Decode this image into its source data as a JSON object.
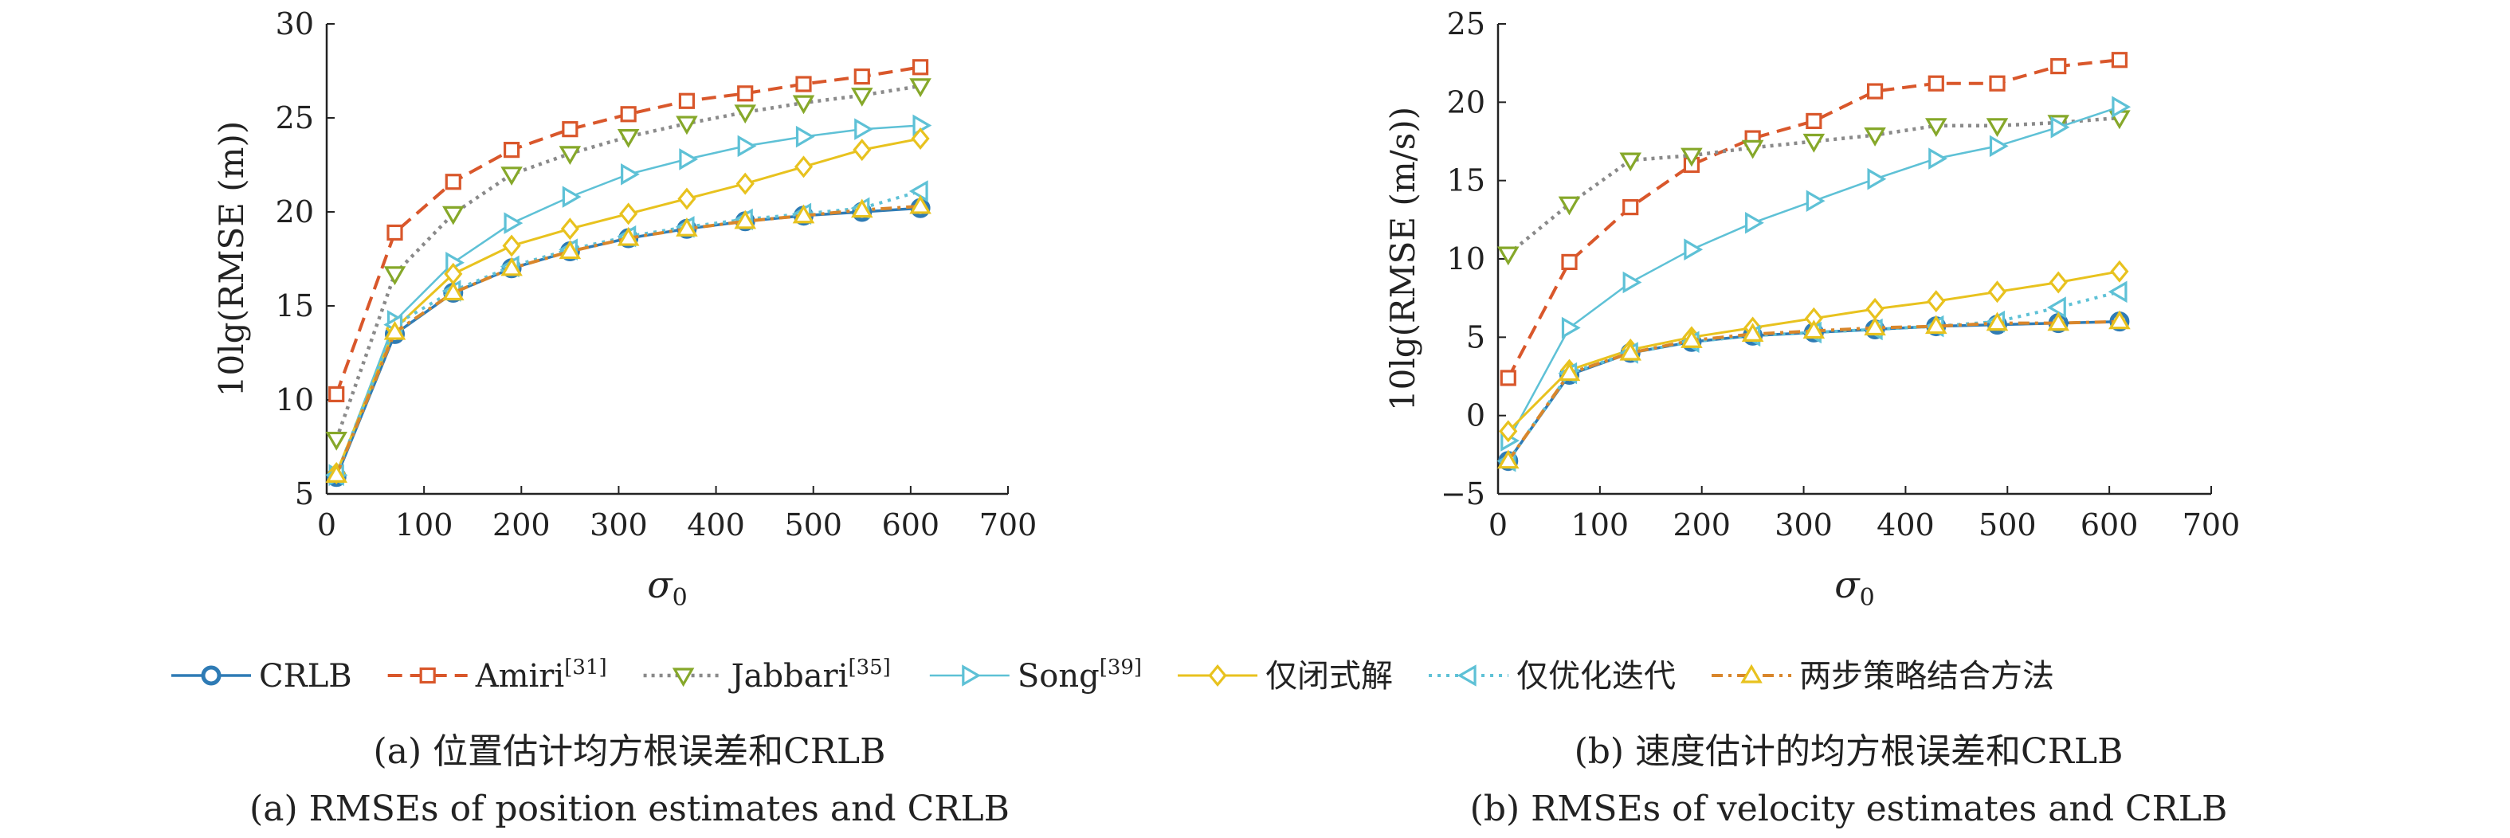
{
  "captions": {
    "a_cn": "(a) 位置估计均方根误差和CRLB",
    "a_en": "(a) RMSEs of position estimates and CRLB",
    "b_cn": "(b) 速度估计的均方根误差和CRLB",
    "b_en": "(b) RMSEs of velocity estimates and CRLB"
  },
  "legend": [
    {
      "name": "CRLB",
      "sup": ""
    },
    {
      "name": "Amiri",
      "sup": "[31]"
    },
    {
      "name": "Jabbari",
      "sup": "[35]"
    },
    {
      "name": "Song",
      "sup": "[39]"
    },
    {
      "name": "仅闭式解",
      "sup": ""
    },
    {
      "name": "仅优化迭代",
      "sup": ""
    },
    {
      "name": "两步策略结合方法",
      "sup": ""
    }
  ],
  "styles": [
    {
      "color": "#2e7bb5",
      "dash": "",
      "marker": "circle",
      "width": 3.5
    },
    {
      "color": "#d9572b",
      "dash": "18,10",
      "marker": "square",
      "width": 4
    },
    {
      "color": "#8a8a8a",
      "dash": "4,6",
      "marker": "tri-down",
      "width": 4.5,
      "mcolor": "#86a82a"
    },
    {
      "color": "#5ec1d6",
      "dash": "",
      "marker": "tri-right",
      "width": 2.5
    },
    {
      "color": "#e8c21e",
      "dash": "",
      "marker": "diamond",
      "width": 3
    },
    {
      "color": "#5ec1d6",
      "dash": "4,7",
      "marker": "tri-left",
      "width": 4
    },
    {
      "color": "#d9862b",
      "dash": "14,7,4,7",
      "marker": "tri-up",
      "width": 4,
      "mcolor": "#e8c21e"
    }
  ],
  "chart_data": [
    {
      "type": "line",
      "title": "",
      "xlabel": "σ0",
      "ylabel": "10lg(RMSE (m))",
      "xlim": [
        0,
        700
      ],
      "ylim": [
        5,
        30
      ],
      "xticks": [
        0,
        100,
        200,
        300,
        400,
        500,
        600,
        700
      ],
      "yticks": [
        5,
        10,
        15,
        20,
        25,
        30
      ],
      "x": [
        10,
        70,
        130,
        190,
        250,
        310,
        370,
        430,
        490,
        550,
        610
      ],
      "series": [
        {
          "name": "CRLB",
          "values": [
            5.9,
            13.5,
            15.7,
            17.0,
            17.9,
            18.6,
            19.1,
            19.5,
            19.8,
            20.0,
            20.2
          ]
        },
        {
          "name": "Amiri[31]",
          "values": [
            10.3,
            18.9,
            21.6,
            23.3,
            24.4,
            25.2,
            25.9,
            26.3,
            26.8,
            27.2,
            27.7
          ]
        },
        {
          "name": "Jabbari[35]",
          "values": [
            7.9,
            16.7,
            19.9,
            22.0,
            23.1,
            24.0,
            24.7,
            25.3,
            25.8,
            26.2,
            26.7
          ]
        },
        {
          "name": "Song[39]",
          "values": [
            6.0,
            14.2,
            17.3,
            19.4,
            20.8,
            22.0,
            22.8,
            23.5,
            24.0,
            24.4,
            24.6
          ]
        },
        {
          "name": "仅闭式解",
          "values": [
            6.1,
            13.8,
            16.7,
            18.2,
            19.1,
            19.9,
            20.7,
            21.5,
            22.4,
            23.3,
            23.9
          ]
        },
        {
          "name": "仅优化迭代",
          "values": [
            6.0,
            14.0,
            15.8,
            17.1,
            18.0,
            18.7,
            19.2,
            19.6,
            19.9,
            20.2,
            21.1
          ]
        },
        {
          "name": "两步策略结合方法",
          "values": [
            6.0,
            13.6,
            15.7,
            17.0,
            17.9,
            18.6,
            19.1,
            19.5,
            19.8,
            20.1,
            20.3
          ]
        }
      ]
    },
    {
      "type": "line",
      "title": "",
      "xlabel": "σ0",
      "ylabel": "10lg(RMSE (m/s))",
      "xlim": [
        0,
        700
      ],
      "ylim": [
        -5,
        25
      ],
      "xticks": [
        0,
        100,
        200,
        300,
        400,
        500,
        600,
        700
      ],
      "yticks": [
        -5,
        0,
        5,
        10,
        15,
        20,
        25
      ],
      "x": [
        10,
        70,
        130,
        190,
        250,
        310,
        370,
        430,
        490,
        550,
        610
      ],
      "series": [
        {
          "name": "CRLB",
          "values": [
            -2.9,
            2.6,
            4.0,
            4.7,
            5.1,
            5.3,
            5.5,
            5.7,
            5.8,
            5.9,
            6.0
          ]
        },
        {
          "name": "Amiri[31]",
          "values": [
            2.4,
            9.8,
            13.3,
            16.0,
            17.7,
            18.8,
            20.7,
            21.2,
            21.2,
            22.3,
            22.7
          ]
        },
        {
          "name": "Jabbari[35]",
          "values": [
            10.3,
            13.5,
            16.3,
            16.6,
            17.1,
            17.5,
            17.9,
            18.5,
            18.5,
            18.7,
            19.0
          ]
        },
        {
          "name": "Song[39]",
          "values": [
            -1.6,
            5.6,
            8.5,
            10.6,
            12.3,
            13.7,
            15.1,
            16.4,
            17.2,
            18.4,
            19.7
          ]
        },
        {
          "name": "仅闭式解",
          "values": [
            -1.0,
            2.9,
            4.2,
            5.0,
            5.6,
            6.2,
            6.8,
            7.3,
            7.9,
            8.5,
            9.2
          ]
        },
        {
          "name": "仅优化迭代",
          "values": [
            -2.9,
            2.7,
            4.0,
            4.7,
            5.1,
            5.3,
            5.5,
            5.7,
            6.0,
            6.9,
            7.9
          ]
        },
        {
          "name": "两步策略结合方法",
          "values": [
            -2.9,
            2.7,
            4.0,
            4.8,
            5.2,
            5.4,
            5.6,
            5.7,
            5.9,
            5.9,
            6.0
          ]
        }
      ]
    }
  ]
}
